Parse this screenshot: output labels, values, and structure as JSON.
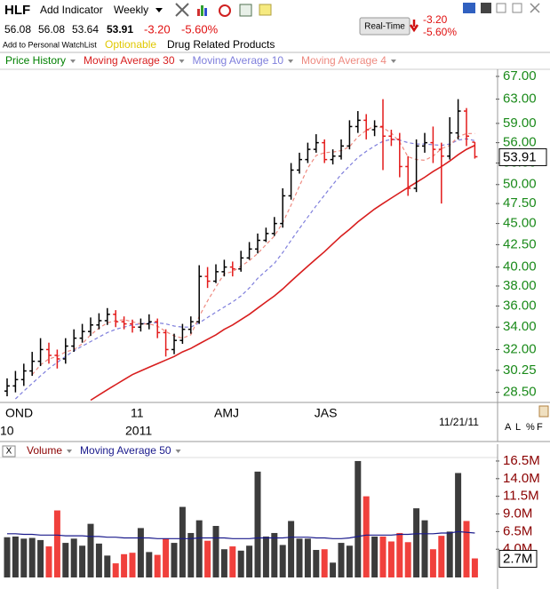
{
  "toolbar": {
    "symbol": "HLF",
    "add_indicator": "Add Indicator",
    "period": "Weekly",
    "watchlist": "Add to Personal WatchList",
    "optionable": "Optionable",
    "industry": "Drug Related Products",
    "realtime": "Real-Time",
    "change": "-3.20",
    "change_pct": "-5.60%"
  },
  "date": "11/21/11",
  "axis_modes": [
    "A",
    "L",
    "%",
    "F"
  ],
  "chart_data": [
    {
      "type": "ohlc",
      "name": "Price History",
      "name_color": "#008000",
      "log": true,
      "up_color": "#000000",
      "down_color": "#e31b1b",
      "categories": [
        "OND",
        null,
        null,
        null,
        null,
        null,
        null,
        null,
        null,
        null,
        null,
        null,
        null,
        null,
        null,
        "11",
        null,
        null,
        null,
        null,
        null,
        null,
        null,
        null,
        null,
        "AMJ",
        null,
        null,
        null,
        null,
        null,
        null,
        null,
        null,
        null,
        null,
        null,
        "JAS",
        null,
        null,
        null,
        null,
        null,
        null,
        null,
        null,
        null,
        null,
        null,
        null,
        null,
        null,
        null,
        null,
        null,
        null,
        null
      ],
      "category_sublabels": [
        "10",
        null,
        null,
        null,
        null,
        null,
        null,
        null,
        null,
        null,
        null,
        null,
        null,
        null,
        null,
        "2011",
        null,
        null,
        null,
        null,
        null,
        null,
        null,
        null,
        null,
        null,
        null,
        null,
        null,
        null,
        null,
        null,
        null,
        null,
        null,
        null,
        null,
        null,
        null,
        null,
        null,
        null,
        null,
        null,
        null,
        null,
        null,
        null,
        null,
        null,
        null,
        null,
        null,
        null,
        null,
        null,
        null
      ],
      "open": [
        28.6,
        29.0,
        29.5,
        30.2,
        31.0,
        32.0,
        31.5,
        31.2,
        32.3,
        33.0,
        33.6,
        34.2,
        34.6,
        35.2,
        34.5,
        34.3,
        34.0,
        34.3,
        34.5,
        33.5,
        32.0,
        32.8,
        33.8,
        34.5,
        39.0,
        38.5,
        39.5,
        40.0,
        39.8,
        41.0,
        42.0,
        43.0,
        43.8,
        45.0,
        48.5,
        52.0,
        53.5,
        55.0,
        56.0,
        53.5,
        54.0,
        55.5,
        58.5,
        59.5,
        58.0,
        58.5,
        57.0,
        56.5,
        52.5,
        49.5,
        55.5,
        56.0,
        55.0,
        54.0,
        57.5,
        61.0,
        56.08
      ],
      "high": [
        29.6,
        30.2,
        30.8,
        31.8,
        33.0,
        32.6,
        32.0,
        33.0,
        33.8,
        34.3,
        34.9,
        35.3,
        35.8,
        35.6,
        35.0,
        34.7,
        34.8,
        35.2,
        34.8,
        33.8,
        33.4,
        34.3,
        35.0,
        40.2,
        40.0,
        40.3,
        40.8,
        40.6,
        41.8,
        42.8,
        43.8,
        44.5,
        45.8,
        49.5,
        53.0,
        54.5,
        56.0,
        57.3,
        56.5,
        55.0,
        56.5,
        59.5,
        61.0,
        60.5,
        59.5,
        63.0,
        58.0,
        57.5,
        54.0,
        56.5,
        57.5,
        58.5,
        56.0,
        60.0,
        63.0,
        61.5,
        56.08
      ],
      "low": [
        28.2,
        28.5,
        29.0,
        29.8,
        30.6,
        30.8,
        30.4,
        30.8,
        31.8,
        32.6,
        33.2,
        33.8,
        34.2,
        34.0,
        33.8,
        33.5,
        33.6,
        33.8,
        33.0,
        31.4,
        31.6,
        32.5,
        33.4,
        34.3,
        37.8,
        38.3,
        39.0,
        39.0,
        39.5,
        40.8,
        41.5,
        42.8,
        43.5,
        44.5,
        48.0,
        51.5,
        53.0,
        54.5,
        53.0,
        52.8,
        53.5,
        55.0,
        57.5,
        56.5,
        57.0,
        52.0,
        55.5,
        51.0,
        48.5,
        49.0,
        54.5,
        53.0,
        47.5,
        53.5,
        56.5,
        55.5,
        53.64
      ],
      "close": [
        29.0,
        29.5,
        30.2,
        31.0,
        32.0,
        31.5,
        31.2,
        32.3,
        33.0,
        33.6,
        34.2,
        34.6,
        35.2,
        34.5,
        34.3,
        34.0,
        34.3,
        34.5,
        33.5,
        32.0,
        32.8,
        33.8,
        34.5,
        39.0,
        38.5,
        39.5,
        40.0,
        39.8,
        41.0,
        42.0,
        43.0,
        43.8,
        45.0,
        48.5,
        52.0,
        53.5,
        55.0,
        56.0,
        53.5,
        54.0,
        55.5,
        58.5,
        59.5,
        58.0,
        58.5,
        57.0,
        56.5,
        52.5,
        49.5,
        55.5,
        56.0,
        55.0,
        54.0,
        57.5,
        61.0,
        57.0,
        53.91
      ],
      "moving_averages": [
        {
          "name": "Moving Average 30",
          "color": "#d81e1e",
          "dash": false,
          "values": [
            null,
            null,
            null,
            null,
            null,
            null,
            null,
            null,
            null,
            null,
            27.9,
            28.3,
            28.7,
            29.1,
            29.5,
            29.9,
            30.2,
            30.5,
            30.8,
            31.1,
            31.4,
            31.8,
            32.1,
            32.5,
            32.9,
            33.3,
            33.8,
            34.2,
            34.7,
            35.2,
            35.8,
            36.4,
            37.0,
            37.7,
            38.5,
            39.3,
            40.1,
            40.9,
            41.7,
            42.6,
            43.5,
            44.3,
            45.2,
            46.0,
            46.8,
            47.5,
            48.2,
            48.9,
            49.6,
            50.3,
            51.0,
            51.8,
            52.5,
            53.3,
            54.2,
            55.0,
            55.6
          ]
        },
        {
          "name": "Moving Average 10",
          "color": "#7f7fdc",
          "dash": true,
          "values": [
            null,
            28.0,
            28.6,
            29.2,
            29.8,
            30.4,
            30.9,
            31.4,
            31.9,
            32.3,
            32.7,
            33.1,
            33.5,
            33.8,
            34.0,
            34.2,
            34.3,
            34.4,
            34.4,
            34.3,
            34.1,
            34.0,
            34.0,
            34.4,
            34.9,
            35.4,
            35.9,
            36.4,
            37.0,
            37.8,
            38.8,
            39.6,
            40.4,
            41.6,
            43.0,
            44.4,
            45.8,
            47.2,
            48.6,
            50.0,
            51.4,
            52.6,
            53.8,
            54.7,
            55.5,
            56.2,
            56.5,
            56.4,
            56.0,
            55.8,
            55.8,
            55.7,
            55.6,
            55.8,
            56.4,
            56.6,
            56.3
          ]
        },
        {
          "name": "Moving Average 4",
          "color": "#ee8a80",
          "dash": true,
          "values": [
            null,
            null,
            null,
            29.9,
            30.7,
            31.2,
            31.4,
            31.8,
            32.0,
            32.5,
            33.3,
            33.9,
            34.4,
            34.6,
            34.7,
            34.5,
            34.3,
            34.3,
            34.1,
            33.6,
            33.2,
            33.0,
            33.3,
            35.0,
            36.5,
            37.9,
            39.3,
            39.5,
            40.1,
            40.7,
            41.5,
            42.5,
            43.5,
            45.1,
            47.3,
            49.8,
            52.3,
            54.1,
            54.5,
            54.6,
            54.8,
            55.4,
            56.9,
            57.9,
            58.6,
            58.3,
            57.5,
            56.1,
            53.9,
            53.5,
            53.4,
            54.0,
            55.1,
            55.6,
            56.9,
            57.4,
            57.4
          ]
        }
      ],
      "ylim": [
        27.8,
        68.3
      ],
      "yticks": [
        {
          "value": 67,
          "label": "67.00"
        },
        {
          "value": 63,
          "label": "63.00"
        },
        {
          "value": 59,
          "label": "59.00"
        },
        {
          "value": 56,
          "label": "56.00"
        },
        {
          "value": 53,
          "label": "53.00"
        },
        {
          "value": 50,
          "label": "50.00"
        },
        {
          "value": 47.5,
          "label": "47.50"
        },
        {
          "value": 45,
          "label": "45.00"
        },
        {
          "value": 42.5,
          "label": "42.50"
        },
        {
          "value": 40,
          "label": "40.00"
        },
        {
          "value": 38,
          "label": "38.00"
        },
        {
          "value": 36,
          "label": "36.00"
        },
        {
          "value": 34,
          "label": "34.00"
        },
        {
          "value": 32,
          "label": "32.00"
        },
        {
          "value": 30.25,
          "label": "30.25"
        },
        {
          "value": 28.5,
          "label": "28.50"
        }
      ]
    },
    {
      "type": "bar",
      "name": "Volume",
      "name_color": "#8b0000",
      "up_color": "#3c3c3c",
      "down_color": "#f0403c",
      "values": [
        5.7,
        5.8,
        5.5,
        5.6,
        5.3,
        4.4,
        9.5,
        4.9,
        5.5,
        4.5,
        7.6,
        4.8,
        3.1,
        2.0,
        3.3,
        3.5,
        7.0,
        3.6,
        3.2,
        5.5,
        4.9,
        10.0,
        6.3,
        8.1,
        5.2,
        7.3,
        4.0,
        4.4,
        3.8,
        4.5,
        15.0,
        5.8,
        6.3,
        4.6,
        8.0,
        5.5,
        5.5,
        3.9,
        4.0,
        2.1,
        4.9,
        4.5,
        16.5,
        11.5,
        5.8,
        5.8,
        5.1,
        6.3,
        5.0,
        9.8,
        8.1,
        4.0,
        5.9,
        6.5,
        14.8,
        8.0,
        2.7
      ],
      "last_label": "2.7M",
      "moving_average": {
        "name": "Moving Average 50",
        "color": "#1a1a8c",
        "values": [
          6.2,
          6.2,
          6.1,
          6.1,
          6.0,
          6.0,
          6.0,
          5.9,
          5.9,
          5.9,
          5.8,
          5.8,
          5.7,
          5.7,
          5.6,
          5.6,
          5.6,
          5.6,
          5.5,
          5.5,
          5.5,
          5.5,
          5.5,
          5.6,
          5.6,
          5.6,
          5.6,
          5.5,
          5.5,
          5.5,
          5.6,
          5.6,
          5.6,
          5.6,
          5.7,
          5.7,
          5.7,
          5.6,
          5.6,
          5.5,
          5.5,
          5.6,
          5.8,
          6.0,
          6.0,
          6.0,
          6.0,
          6.1,
          6.1,
          6.2,
          6.2,
          6.2,
          6.3,
          6.3,
          6.5,
          6.4,
          6.3
        ]
      },
      "ylim": [
        0,
        17.5
      ],
      "yticks": [
        {
          "value": 16.5,
          "label": "16.5M"
        },
        {
          "value": 14,
          "label": "14.0M"
        },
        {
          "value": 11.5,
          "label": "11.5M"
        },
        {
          "value": 9,
          "label": "9.0M"
        },
        {
          "value": 6.5,
          "label": "6.5M"
        },
        {
          "value": 4,
          "label": "4.0M"
        }
      ]
    }
  ]
}
